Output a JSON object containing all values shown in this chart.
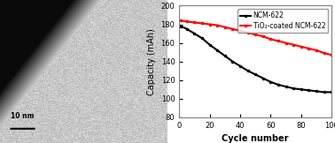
{
  "ncm_x": [
    1,
    5,
    10,
    15,
    20,
    25,
    30,
    35,
    40,
    45,
    50,
    55,
    60,
    65,
    70,
    75,
    80,
    85,
    90,
    95,
    100
  ],
  "ncm_y": [
    178,
    175,
    170,
    165,
    158,
    152,
    146,
    140,
    135,
    130,
    126,
    122,
    118,
    115,
    113,
    111,
    110,
    109,
    108,
    107,
    107
  ],
  "tio2_x": [
    1,
    5,
    10,
    15,
    20,
    25,
    30,
    35,
    40,
    45,
    50,
    55,
    60,
    65,
    70,
    75,
    80,
    85,
    90,
    95,
    100
  ],
  "tio2_y": [
    184,
    183,
    182,
    181,
    180,
    179,
    177,
    175,
    173,
    171,
    169,
    167,
    164,
    162,
    160,
    158,
    156,
    154,
    152,
    149,
    147
  ],
  "ncm_color": "#000000",
  "tio2_color": "#ff0000",
  "xlabel": "Cycle number",
  "ylabel": "Capacity (mAh)",
  "ylim": [
    80,
    200
  ],
  "xlim": [
    0,
    100
  ],
  "yticks": [
    80,
    100,
    120,
    140,
    160,
    180,
    200
  ],
  "xticks": [
    0,
    20,
    40,
    60,
    80,
    100
  ],
  "legend_ncm": "NCM-622",
  "legend_tio2": "TiO₂-coated NCM-622",
  "scale_bar_text": "10 nm",
  "line_width": 1.5
}
